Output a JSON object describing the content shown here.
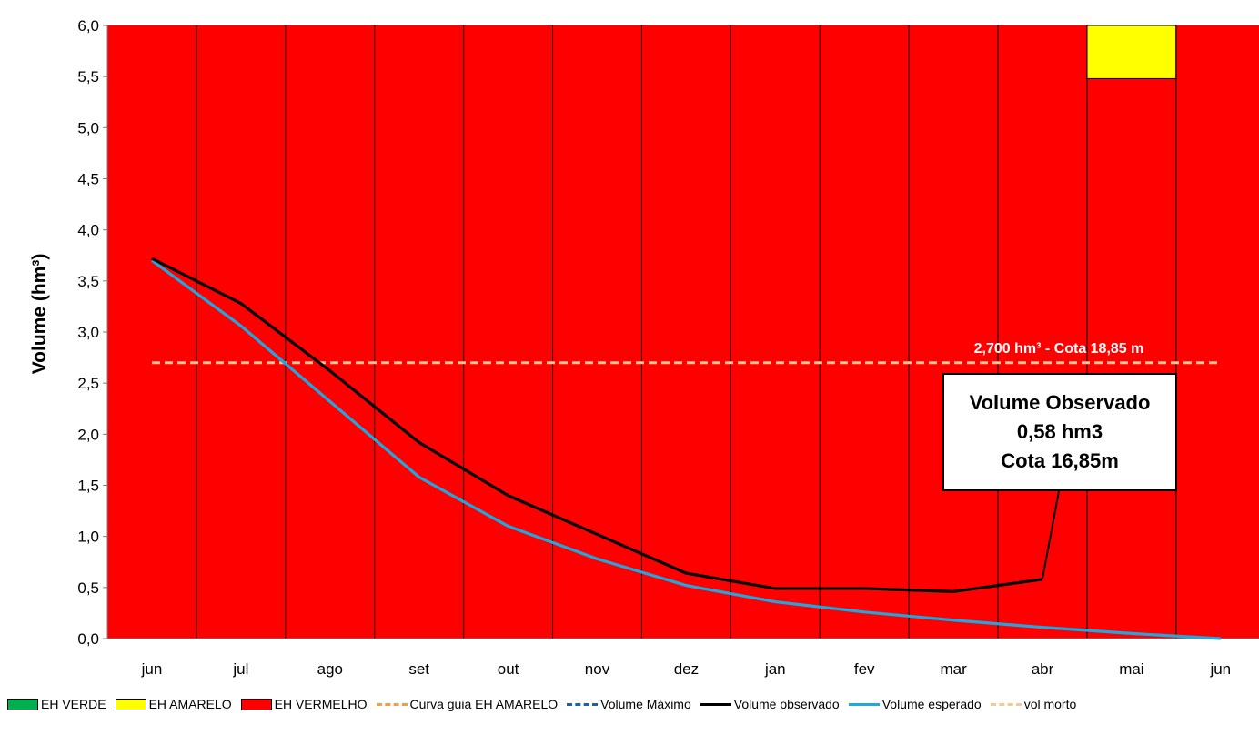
{
  "chart_data": {
    "type": "line",
    "ylabel": "Volume (hm³)",
    "ylim": [
      0,
      6
    ],
    "yticks": [
      "0,0",
      "0,5",
      "1,0",
      "1,5",
      "2,0",
      "2,5",
      "3,0",
      "3,5",
      "4,0",
      "4,5",
      "5,0",
      "5,5",
      "6,0"
    ],
    "categories": [
      "jun",
      "jul",
      "ago",
      "set",
      "out",
      "nov",
      "dez",
      "jan",
      "fev",
      "mar",
      "abr",
      "mai",
      "jun"
    ],
    "background_bands": [
      {
        "name": "EH VERMELHO",
        "color": "#ff0000",
        "from": 0,
        "to": 6
      },
      {
        "name": "EH AMARELO",
        "color": "#ffff00",
        "month_index": 11,
        "from": 5.48,
        "to": 6
      }
    ],
    "series": [
      {
        "name": "Volume observado",
        "color": "#000000",
        "values": [
          3.72,
          3.28,
          2.62,
          1.92,
          1.4,
          1.02,
          0.64,
          0.49,
          0.49,
          0.46,
          0.58,
          null,
          null
        ]
      },
      {
        "name": "Volume esperado",
        "color": "#1ca8e0",
        "values": [
          3.7,
          3.06,
          2.32,
          1.58,
          1.1,
          0.78,
          0.52,
          0.36,
          0.26,
          0.18,
          0.11,
          0.05,
          0.0
        ]
      },
      {
        "name": "vol morto",
        "color": "#f5c79b",
        "dashed": true,
        "values": [
          2.7,
          2.7,
          2.7,
          2.7,
          2.7,
          2.7,
          2.7,
          2.7,
          2.7,
          2.7,
          2.7,
          2.7,
          2.7
        ]
      }
    ],
    "annotations": {
      "dead_volume_label": "2,700 hm³ - Cota 18,85 m",
      "callout": [
        "Volume Observado",
        "0,58 hm3",
        "Cota 16,85m"
      ]
    },
    "legend": {
      "position": "bottom",
      "items": [
        {
          "label": "EH VERDE",
          "kind": "box",
          "color": "#00b050"
        },
        {
          "label": "EH AMARELO",
          "kind": "box",
          "color": "#ffff00"
        },
        {
          "label": "EH VERMELHO",
          "kind": "box",
          "color": "#ff0000"
        },
        {
          "label": "Curva guia EH AMARELO",
          "kind": "dash",
          "color": "#f39c4a"
        },
        {
          "label": "Volume Máximo",
          "kind": "dash",
          "color": "#1f5fae"
        },
        {
          "label": "Volume observado",
          "kind": "line",
          "color": "#000000"
        },
        {
          "label": "Volume esperado",
          "kind": "line",
          "color": "#1ca8e0"
        },
        {
          "label": "vol morto",
          "kind": "dash",
          "color": "#f5c79b"
        }
      ]
    }
  }
}
